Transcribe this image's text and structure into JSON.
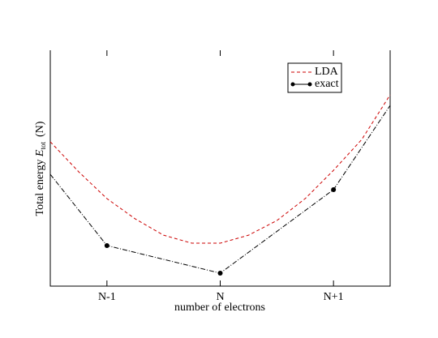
{
  "chart_data": {
    "type": "line",
    "xlabel": "number of electrons",
    "ylabel": {
      "text": "Total energy",
      "symbol": "E",
      "subscript": "tot",
      "suffix": "(N)"
    },
    "xlim": [
      -1.5,
      1.5
    ],
    "xticks": [
      {
        "value": -1,
        "label": "N-1"
      },
      {
        "value": 0,
        "label": "N"
      },
      {
        "value": 1,
        "label": "N+1"
      }
    ],
    "ylim": [
      0,
      1
    ],
    "series": [
      {
        "name": "LDA",
        "color": "#cc0000",
        "dash": "4,3",
        "markers": false,
        "x": [
          -1.5,
          -1.25,
          -1,
          -0.75,
          -0.5,
          -0.25,
          0,
          0.25,
          0.5,
          0.75,
          1,
          1.25,
          1.5
        ],
        "values": [
          0.612,
          0.485,
          0.371,
          0.285,
          0.216,
          0.182,
          0.182,
          0.216,
          0.278,
          0.371,
          0.491,
          0.622,
          0.811
        ]
      },
      {
        "name": "exact",
        "color": "#000000",
        "dash": "6,2,1,2",
        "markers": true,
        "x": [
          -1.5,
          -1,
          0,
          1,
          1.5
        ],
        "values": [
          0.474,
          0.172,
          0.055,
          0.409,
          0.766
        ]
      }
    ],
    "legend": "upper right"
  }
}
